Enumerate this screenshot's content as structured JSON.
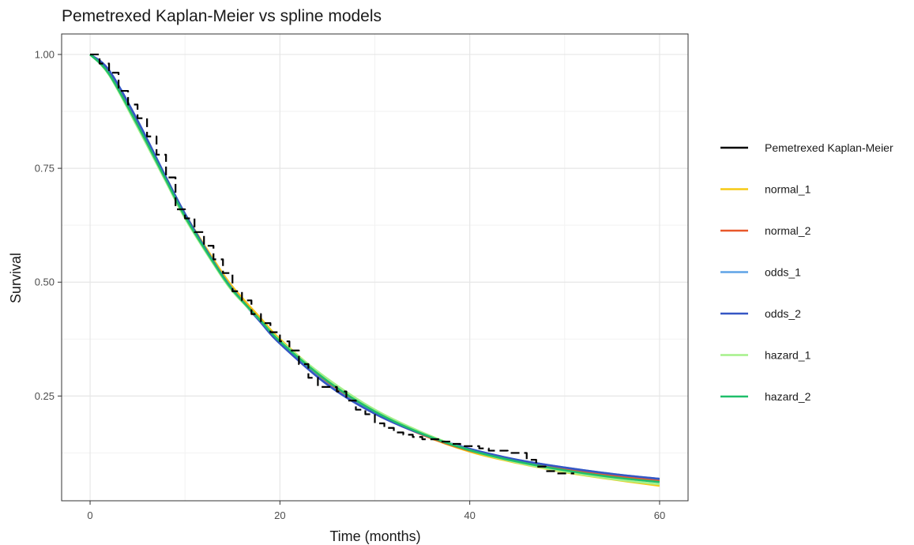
{
  "chart_data": {
    "type": "line",
    "title": "Pemetrexed Kaplan-Meier vs spline models",
    "xlabel": "Time (months)",
    "ylabel": "Survival",
    "xlim": [
      -3,
      63
    ],
    "ylim": [
      0.02,
      1.045
    ],
    "x_ticks": [
      0,
      20,
      40,
      60
    ],
    "x_tick_labels": [
      "0",
      "20",
      "40",
      "60"
    ],
    "y_ticks": [
      0.25,
      0.5,
      0.75,
      1.0
    ],
    "y_tick_labels": [
      "0.25",
      "0.50",
      "0.75",
      "1.00"
    ],
    "grid": true,
    "legend_position": "right",
    "series": [
      {
        "name": "Pemetrexed Kaplan-Meier",
        "color": "#000000",
        "style": "dashed",
        "step": true,
        "x": [
          0,
          1,
          2,
          3,
          4,
          5,
          6,
          7,
          8,
          9,
          10,
          11,
          12,
          13,
          14,
          15,
          16,
          17,
          18,
          19,
          20,
          21,
          22,
          23,
          24,
          25,
          26,
          27,
          28,
          29,
          30,
          31,
          32,
          33,
          34,
          35,
          36,
          37,
          38,
          39,
          40,
          41,
          42,
          43,
          44,
          45,
          46,
          47,
          48,
          49,
          50,
          51
        ],
        "y": [
          1.0,
          0.98,
          0.96,
          0.92,
          0.89,
          0.86,
          0.82,
          0.78,
          0.73,
          0.66,
          0.64,
          0.61,
          0.58,
          0.55,
          0.52,
          0.48,
          0.46,
          0.43,
          0.41,
          0.39,
          0.37,
          0.35,
          0.32,
          0.29,
          0.27,
          0.27,
          0.26,
          0.24,
          0.22,
          0.21,
          0.19,
          0.18,
          0.17,
          0.165,
          0.16,
          0.155,
          0.155,
          0.15,
          0.145,
          0.14,
          0.14,
          0.135,
          0.13,
          0.13,
          0.125,
          0.125,
          0.11,
          0.095,
          0.085,
          0.08,
          0.08,
          0.08
        ]
      },
      {
        "name": "normal_1",
        "color": "#f6c913",
        "x": [
          0,
          2,
          5,
          8,
          10,
          13,
          15,
          18,
          20,
          25,
          30,
          35,
          40,
          45,
          50,
          55,
          60
        ],
        "y": [
          1.0,
          0.96,
          0.85,
          0.73,
          0.65,
          0.55,
          0.49,
          0.42,
          0.375,
          0.285,
          0.215,
          0.165,
          0.128,
          0.103,
          0.083,
          0.067,
          0.053
        ]
      },
      {
        "name": "normal_2",
        "color": "#e8582a",
        "x": [
          0,
          2,
          5,
          8,
          10,
          13,
          15,
          18,
          20,
          25,
          30,
          35,
          40,
          45,
          50,
          55,
          60
        ],
        "y": [
          1.0,
          0.96,
          0.85,
          0.725,
          0.645,
          0.545,
          0.485,
          0.415,
          0.37,
          0.28,
          0.213,
          0.165,
          0.13,
          0.107,
          0.089,
          0.075,
          0.064
        ]
      },
      {
        "name": "odds_1",
        "color": "#5fa3e6",
        "x": [
          0,
          2,
          5,
          8,
          10,
          13,
          15,
          18,
          20,
          25,
          30,
          35,
          40,
          45,
          50,
          55,
          60
        ],
        "y": [
          1.0,
          0.965,
          0.855,
          0.73,
          0.65,
          0.545,
          0.485,
          0.412,
          0.366,
          0.276,
          0.212,
          0.167,
          0.134,
          0.11,
          0.093,
          0.079,
          0.068
        ]
      },
      {
        "name": "odds_2",
        "color": "#3556c4",
        "x": [
          0,
          2,
          5,
          8,
          10,
          13,
          15,
          18,
          20,
          25,
          30,
          35,
          40,
          45,
          50,
          55,
          60
        ],
        "y": [
          1.0,
          0.965,
          0.855,
          0.73,
          0.65,
          0.545,
          0.484,
          0.411,
          0.365,
          0.275,
          0.211,
          0.166,
          0.134,
          0.11,
          0.093,
          0.079,
          0.068
        ]
      },
      {
        "name": "hazard_1",
        "color": "#a5f08a",
        "x": [
          0,
          2,
          5,
          8,
          10,
          13,
          15,
          18,
          20,
          25,
          30,
          35,
          40,
          45,
          50,
          55,
          60
        ],
        "y": [
          1.0,
          0.955,
          0.84,
          0.72,
          0.64,
          0.54,
          0.48,
          0.415,
          0.372,
          0.288,
          0.22,
          0.17,
          0.131,
          0.104,
          0.084,
          0.068,
          0.056
        ]
      },
      {
        "name": "hazard_2",
        "color": "#1fbf6a",
        "x": [
          0,
          2,
          5,
          8,
          10,
          13,
          15,
          18,
          20,
          25,
          30,
          35,
          40,
          45,
          50,
          55,
          60
        ],
        "y": [
          1.0,
          0.957,
          0.845,
          0.724,
          0.644,
          0.543,
          0.483,
          0.415,
          0.37,
          0.283,
          0.216,
          0.167,
          0.131,
          0.106,
          0.087,
          0.072,
          0.061
        ]
      }
    ]
  }
}
